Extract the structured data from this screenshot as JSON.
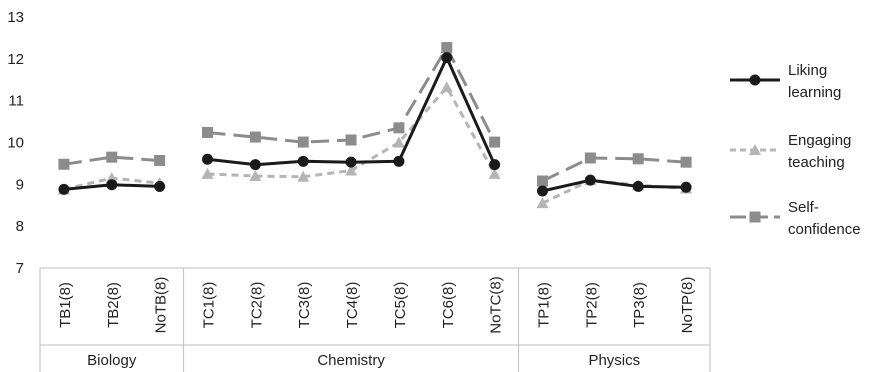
{
  "chart_data": {
    "type": "line",
    "categories": [
      "TB1(8)",
      "TB2(8)",
      "NoTB(8)",
      "TC1(8)",
      "TC2(8)",
      "TC3(8)",
      "TC4(8)",
      "TC5(8)",
      "TC6(8)",
      "NoTC(8)",
      "TP1(8)",
      "TP2(8)",
      "TP3(8)",
      "NoTP(8)"
    ],
    "groups": [
      {
        "name": "Biology",
        "categories": [
          "TB1(8)",
          "TB2(8)",
          "NoTB(8)"
        ]
      },
      {
        "name": "Chemistry",
        "categories": [
          "TC1(8)",
          "TC2(8)",
          "TC3(8)",
          "TC4(8)",
          "TC5(8)",
          "TC6(8)",
          "NoTC(8)"
        ]
      },
      {
        "name": "Physics",
        "categories": [
          "TP1(8)",
          "TP2(8)",
          "TP3(8)",
          "NoTP(8)"
        ]
      }
    ],
    "series": [
      {
        "name_lines": [
          "Liking",
          "learning"
        ],
        "color": "#1a1a1a",
        "line_style": "solid",
        "marker": "circle",
        "values": [
          8.88,
          8.99,
          8.95,
          9.6,
          9.47,
          9.55,
          9.53,
          9.55,
          12.03,
          9.47,
          8.84,
          9.1,
          8.95,
          8.93
        ]
      },
      {
        "name_lines": [
          "Engaging",
          "teaching"
        ],
        "color": "#b5b5b5",
        "line_style": "short-dash",
        "marker": "triangle",
        "values": [
          8.88,
          9.15,
          9.03,
          9.25,
          9.2,
          9.18,
          9.33,
          10.0,
          11.32,
          9.25,
          8.55,
          9.1,
          8.98,
          8.9
        ]
      },
      {
        "name_lines": [
          "Self-",
          "confidence"
        ],
        "color": "#8c8c8c",
        "line_style": "long-dash",
        "marker": "square",
        "values": [
          9.48,
          9.65,
          9.57,
          10.24,
          10.13,
          10.01,
          10.06,
          10.35,
          12.27,
          10.01,
          9.08,
          9.63,
          9.61,
          9.53
        ]
      }
    ],
    "ylim": [
      7,
      13
    ],
    "yticks": [
      7,
      8,
      9,
      10,
      11,
      12,
      13
    ],
    "legend_position": "right",
    "grid": false
  }
}
